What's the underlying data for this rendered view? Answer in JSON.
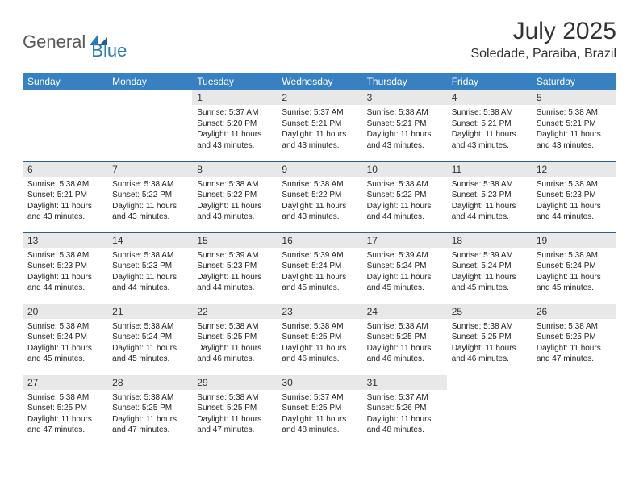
{
  "brand": {
    "general": "General",
    "blue": "Blue"
  },
  "title": "July 2025",
  "location": "Soledade, Paraiba, Brazil",
  "colors": {
    "header_bg": "#3781c2",
    "header_text": "#ffffff",
    "daynum_bg": "#e8e8e8",
    "text": "#222222",
    "rule": "#2f5d8a",
    "logo_gray": "#5a5a5a",
    "logo_blue": "#2a7ab9"
  },
  "weekdays": [
    "Sunday",
    "Monday",
    "Tuesday",
    "Wednesday",
    "Thursday",
    "Friday",
    "Saturday"
  ],
  "weeks": [
    [
      {
        "n": "",
        "sr": "",
        "ss": "",
        "dl": "",
        "empty": true
      },
      {
        "n": "",
        "sr": "",
        "ss": "",
        "dl": "",
        "empty": true
      },
      {
        "n": "1",
        "sr": "Sunrise: 5:37 AM",
        "ss": "Sunset: 5:20 PM",
        "dl": "Daylight: 11 hours and 43 minutes."
      },
      {
        "n": "2",
        "sr": "Sunrise: 5:37 AM",
        "ss": "Sunset: 5:21 PM",
        "dl": "Daylight: 11 hours and 43 minutes."
      },
      {
        "n": "3",
        "sr": "Sunrise: 5:38 AM",
        "ss": "Sunset: 5:21 PM",
        "dl": "Daylight: 11 hours and 43 minutes."
      },
      {
        "n": "4",
        "sr": "Sunrise: 5:38 AM",
        "ss": "Sunset: 5:21 PM",
        "dl": "Daylight: 11 hours and 43 minutes."
      },
      {
        "n": "5",
        "sr": "Sunrise: 5:38 AM",
        "ss": "Sunset: 5:21 PM",
        "dl": "Daylight: 11 hours and 43 minutes."
      }
    ],
    [
      {
        "n": "6",
        "sr": "Sunrise: 5:38 AM",
        "ss": "Sunset: 5:21 PM",
        "dl": "Daylight: 11 hours and 43 minutes."
      },
      {
        "n": "7",
        "sr": "Sunrise: 5:38 AM",
        "ss": "Sunset: 5:22 PM",
        "dl": "Daylight: 11 hours and 43 minutes."
      },
      {
        "n": "8",
        "sr": "Sunrise: 5:38 AM",
        "ss": "Sunset: 5:22 PM",
        "dl": "Daylight: 11 hours and 43 minutes."
      },
      {
        "n": "9",
        "sr": "Sunrise: 5:38 AM",
        "ss": "Sunset: 5:22 PM",
        "dl": "Daylight: 11 hours and 43 minutes."
      },
      {
        "n": "10",
        "sr": "Sunrise: 5:38 AM",
        "ss": "Sunset: 5:22 PM",
        "dl": "Daylight: 11 hours and 44 minutes."
      },
      {
        "n": "11",
        "sr": "Sunrise: 5:38 AM",
        "ss": "Sunset: 5:23 PM",
        "dl": "Daylight: 11 hours and 44 minutes."
      },
      {
        "n": "12",
        "sr": "Sunrise: 5:38 AM",
        "ss": "Sunset: 5:23 PM",
        "dl": "Daylight: 11 hours and 44 minutes."
      }
    ],
    [
      {
        "n": "13",
        "sr": "Sunrise: 5:38 AM",
        "ss": "Sunset: 5:23 PM",
        "dl": "Daylight: 11 hours and 44 minutes."
      },
      {
        "n": "14",
        "sr": "Sunrise: 5:38 AM",
        "ss": "Sunset: 5:23 PM",
        "dl": "Daylight: 11 hours and 44 minutes."
      },
      {
        "n": "15",
        "sr": "Sunrise: 5:39 AM",
        "ss": "Sunset: 5:23 PM",
        "dl": "Daylight: 11 hours and 44 minutes."
      },
      {
        "n": "16",
        "sr": "Sunrise: 5:39 AM",
        "ss": "Sunset: 5:24 PM",
        "dl": "Daylight: 11 hours and 45 minutes."
      },
      {
        "n": "17",
        "sr": "Sunrise: 5:39 AM",
        "ss": "Sunset: 5:24 PM",
        "dl": "Daylight: 11 hours and 45 minutes."
      },
      {
        "n": "18",
        "sr": "Sunrise: 5:39 AM",
        "ss": "Sunset: 5:24 PM",
        "dl": "Daylight: 11 hours and 45 minutes."
      },
      {
        "n": "19",
        "sr": "Sunrise: 5:38 AM",
        "ss": "Sunset: 5:24 PM",
        "dl": "Daylight: 11 hours and 45 minutes."
      }
    ],
    [
      {
        "n": "20",
        "sr": "Sunrise: 5:38 AM",
        "ss": "Sunset: 5:24 PM",
        "dl": "Daylight: 11 hours and 45 minutes."
      },
      {
        "n": "21",
        "sr": "Sunrise: 5:38 AM",
        "ss": "Sunset: 5:24 PM",
        "dl": "Daylight: 11 hours and 45 minutes."
      },
      {
        "n": "22",
        "sr": "Sunrise: 5:38 AM",
        "ss": "Sunset: 5:25 PM",
        "dl": "Daylight: 11 hours and 46 minutes."
      },
      {
        "n": "23",
        "sr": "Sunrise: 5:38 AM",
        "ss": "Sunset: 5:25 PM",
        "dl": "Daylight: 11 hours and 46 minutes."
      },
      {
        "n": "24",
        "sr": "Sunrise: 5:38 AM",
        "ss": "Sunset: 5:25 PM",
        "dl": "Daylight: 11 hours and 46 minutes."
      },
      {
        "n": "25",
        "sr": "Sunrise: 5:38 AM",
        "ss": "Sunset: 5:25 PM",
        "dl": "Daylight: 11 hours and 46 minutes."
      },
      {
        "n": "26",
        "sr": "Sunrise: 5:38 AM",
        "ss": "Sunset: 5:25 PM",
        "dl": "Daylight: 11 hours and 47 minutes."
      }
    ],
    [
      {
        "n": "27",
        "sr": "Sunrise: 5:38 AM",
        "ss": "Sunset: 5:25 PM",
        "dl": "Daylight: 11 hours and 47 minutes."
      },
      {
        "n": "28",
        "sr": "Sunrise: 5:38 AM",
        "ss": "Sunset: 5:25 PM",
        "dl": "Daylight: 11 hours and 47 minutes."
      },
      {
        "n": "29",
        "sr": "Sunrise: 5:38 AM",
        "ss": "Sunset: 5:25 PM",
        "dl": "Daylight: 11 hours and 47 minutes."
      },
      {
        "n": "30",
        "sr": "Sunrise: 5:37 AM",
        "ss": "Sunset: 5:25 PM",
        "dl": "Daylight: 11 hours and 48 minutes."
      },
      {
        "n": "31",
        "sr": "Sunrise: 5:37 AM",
        "ss": "Sunset: 5:26 PM",
        "dl": "Daylight: 11 hours and 48 minutes."
      },
      {
        "n": "",
        "sr": "",
        "ss": "",
        "dl": "",
        "empty": true
      },
      {
        "n": "",
        "sr": "",
        "ss": "",
        "dl": "",
        "empty": true
      }
    ]
  ]
}
